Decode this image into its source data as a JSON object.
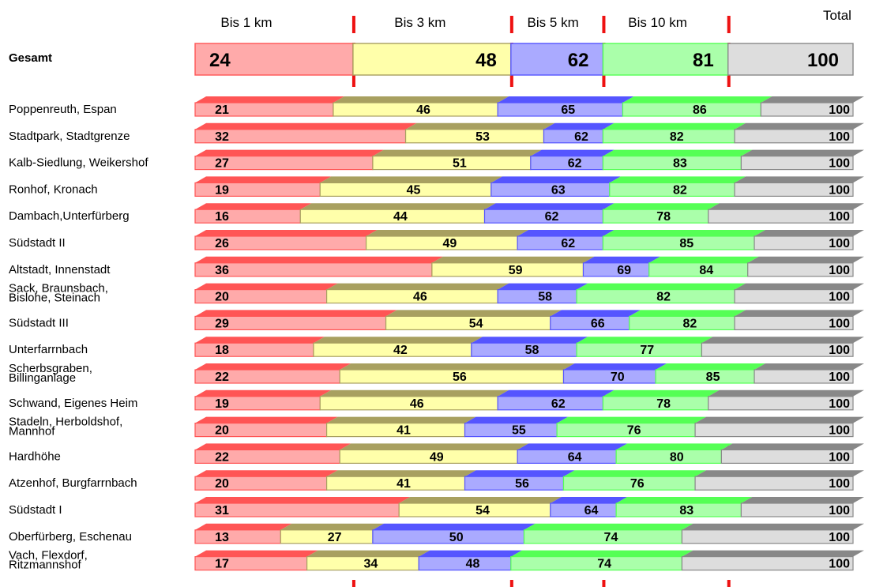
{
  "chart_data": {
    "type": "bar",
    "title": "",
    "xlabel": "",
    "ylabel": "",
    "xlim": [
      0,
      100
    ],
    "bands": [
      {
        "name": "Bis 1 km",
        "color": "#ff5555",
        "light": "#ffaaaa"
      },
      {
        "name": "Bis 3 km",
        "color": "#a8a060",
        "light": "#ffffaa"
      },
      {
        "name": "Bis 5 km",
        "color": "#5555ff",
        "light": "#aaaaff"
      },
      {
        "name": "Bis 10 km",
        "color": "#55ff55",
        "light": "#aaffaa"
      },
      {
        "name": "Total",
        "color": "#888888",
        "light": "#dddddd"
      }
    ],
    "summary": {
      "label": "Gesamt",
      "values": [
        24,
        48,
        62,
        81,
        100
      ]
    },
    "categories": [
      "Poppenreuth, Espan",
      "Stadtpark, Stadtgrenze",
      "Kalb-Siedlung, Weikershof",
      "Ronhof, Kronach",
      "Dambach,Unterfürberg",
      "Südstadt II",
      "Altstadt, Innenstadt",
      "Sack, Braunsbach, Bislohe, Steinach",
      "Südstadt III",
      "Unterfarrnbach",
      "Scherbsgraben, Billinganlage",
      "Schwand, Eigenes Heim",
      "Stadeln, Herboldshof, Mannhof",
      "Hardhöhe",
      "Atzenhof, Burgfarrnbach",
      "Südstadt I",
      "Oberfürberg, Eschenau",
      "Vach, Flexdorf, Ritzmannshof"
    ],
    "category_lines": [
      [
        "Poppenreuth, Espan"
      ],
      [
        "Stadtpark, Stadtgrenze"
      ],
      [
        "Kalb-Siedlung, Weikershof"
      ],
      [
        "Ronhof, Kronach"
      ],
      [
        "Dambach,Unterfürberg"
      ],
      [
        "Südstadt II"
      ],
      [
        "Altstadt, Innenstadt"
      ],
      [
        "Sack, Braunsbach,",
        "Bislohe, Steinach"
      ],
      [
        "Südstadt III"
      ],
      [
        "Unterfarrnbach"
      ],
      [
        "Scherbsgraben,",
        "Billinganlage"
      ],
      [
        "Schwand, Eigenes Heim"
      ],
      [
        "Stadeln, Herboldshof,",
        "Mannhof"
      ],
      [
        "Hardhöhe"
      ],
      [
        "Atzenhof, Burgfarrnbach"
      ],
      [
        "Südstadt I"
      ],
      [
        "Oberfürberg, Eschenau"
      ],
      [
        "Vach, Flexdorf,",
        "Ritzmannshof"
      ]
    ],
    "series": [
      {
        "name": "Bis 1 km",
        "values": [
          21,
          32,
          27,
          19,
          16,
          26,
          36,
          20,
          29,
          18,
          22,
          19,
          20,
          22,
          20,
          31,
          13,
          17
        ]
      },
      {
        "name": "Bis 3 km",
        "values": [
          46,
          53,
          51,
          45,
          44,
          49,
          59,
          46,
          54,
          42,
          56,
          46,
          41,
          49,
          41,
          54,
          27,
          34
        ]
      },
      {
        "name": "Bis 5 km",
        "values": [
          65,
          62,
          62,
          63,
          62,
          62,
          69,
          58,
          66,
          58,
          70,
          62,
          55,
          64,
          56,
          64,
          50,
          48
        ]
      },
      {
        "name": "Bis 10 km",
        "values": [
          86,
          82,
          83,
          82,
          78,
          85,
          84,
          82,
          82,
          77,
          85,
          78,
          76,
          80,
          76,
          83,
          74,
          74
        ]
      },
      {
        "name": "Total",
        "values": [
          100,
          100,
          100,
          100,
          100,
          100,
          100,
          100,
          100,
          100,
          100,
          100,
          100,
          100,
          100,
          100,
          100,
          100
        ]
      }
    ]
  }
}
